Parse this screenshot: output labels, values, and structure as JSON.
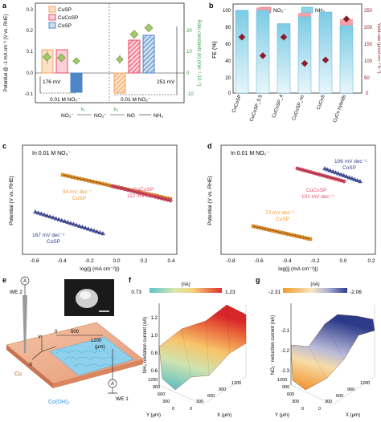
{
  "figure": {
    "panel_labels": {
      "a": "a",
      "b": "b",
      "c": "c",
      "d": "d",
      "e": "e",
      "f": "f",
      "g": "g"
    }
  },
  "panel_a": {
    "ylabel_left": "Potential @ -1 mA cm⁻² (V vs. RHE)",
    "ylabel_right": "Rate constants (k) (min⁻¹·10⁻²)",
    "yticks_left": [
      "0.3",
      "0.2",
      "0.1",
      "0.0",
      "-0.1"
    ],
    "yticks_right": [
      "20",
      "10",
      "0",
      "-10"
    ],
    "legend": [
      "CuSP",
      "CuCoSP",
      "CoSP"
    ],
    "annotation_left": "176 mV",
    "annotation_right": "251 mV",
    "group_labels": [
      "0.01 M NO₃⁻",
      "0.01 M NO₂⁻"
    ],
    "scheme": {
      "s1": "NO₃⁻",
      "s2": "NO₂⁻",
      "s3": "NO",
      "s4": "NH₃",
      "k1": "k₁",
      "k2": "k₂"
    },
    "colors": {
      "CuSP": "#f5a35c",
      "CuCoSP": "#e94d6a",
      "CoSP": "#4f86c6",
      "marker": "#a3c86b",
      "right_axis": "#2e9e3e"
    }
  },
  "panel_b": {
    "ylabel_left": "FE (%)",
    "ylabel_right": "Yield rate (μmol cm⁻² h⁻¹)",
    "yticks_left": [
      "100",
      "80",
      "60",
      "40",
      "20",
      "0"
    ],
    "yticks_right": [
      "250",
      "200",
      "150",
      "100",
      "50",
      "0"
    ],
    "legend": [
      "NO₂⁻",
      "NH₃"
    ],
    "categories": [
      "CuCoSP",
      "CuCoSP_0.5",
      "CuCoSP_4",
      "CuCoSP_no",
      "CuCoS",
      "CuCo hybrids"
    ],
    "fe_nh3": [
      93,
      93,
      78,
      86,
      91,
      76
    ],
    "fe_no2": [
      0,
      3,
      0,
      4,
      0,
      7
    ],
    "yield": [
      157,
      105,
      157,
      83,
      93,
      208
    ],
    "colors": {
      "nh3": "#8fd3e8",
      "no2": "#f4a0a8",
      "yield": "#8b1c2a"
    }
  },
  "panel_c": {
    "title": "In 0.01 M NO₃⁻",
    "xlabel": "log(|j (mA cm⁻²)|)",
    "ylabel": "Potential (V vs. RHE)",
    "xticks": [
      "-0.6",
      "-0.4",
      "-0.2",
      "0.0",
      "0.2",
      "0.4"
    ],
    "labels": [
      {
        "slope": "112 mV dec⁻¹",
        "name": "CuCoSP"
      },
      {
        "slope": "94 mV dec⁻¹",
        "name": "CuSP"
      },
      {
        "slope": "167 mV dec⁻¹",
        "name": "CoSP"
      }
    ]
  },
  "panel_d": {
    "title": "In 0.01 M NO₂⁻",
    "xlabel": "log(|j (mA cm⁻²)|)",
    "ylabel": "Potential (V vs. RHE)",
    "xticks": [
      "-0.8",
      "-0.6",
      "-0.4",
      "-0.2",
      "0.0",
      "0.2"
    ],
    "labels": [
      {
        "slope": "106 mV dec⁻¹",
        "name": "CoSP"
      },
      {
        "slope": "101 mV dec⁻¹",
        "name": "CuCoSP"
      },
      {
        "slope": "72 mV dec⁻¹",
        "name": "CuSP"
      }
    ]
  },
  "panel_e": {
    "we2": "WE 2",
    "we1": "WE 1",
    "meter": "A",
    "axis_y": "Y",
    "axis_x": "X",
    "tick_0": "0",
    "tick_600": "600",
    "tick_1200": "1200",
    "unit": "(μm)",
    "substrate": "Cu",
    "deposit": "Co(OH)₂"
  },
  "panel_f": {
    "cb_min": "0.73",
    "cb_unit": "(nA)",
    "cb_max": "1.23",
    "zlabel": "NH₃ oxidation current (nA)",
    "zticks": [
      "1.2",
      "1.0",
      "0.8",
      "0.6"
    ],
    "yticks": [
      "1200",
      "900",
      "600",
      "300",
      "0"
    ],
    "xticks": [
      "0",
      "300",
      "600",
      "900",
      "1200"
    ],
    "ylabel": "Y (μm)",
    "xlabel": "X (μm)"
  },
  "panel_g": {
    "cb_min": "-2.31",
    "cb_unit": "(nA)",
    "cb_max": "-2.06",
    "zlabel": "NO₂⁻ reduction current (nA)",
    "zticks": [
      "-2.1",
      "-2.2",
      "-2.3"
    ],
    "yticks": [
      "1200",
      "900",
      "600",
      "300",
      "0"
    ],
    "xticks": [
      "0",
      "300",
      "600",
      "900",
      "1200"
    ],
    "ylabel": "Y (μm)",
    "xlabel": "X (μm)"
  }
}
